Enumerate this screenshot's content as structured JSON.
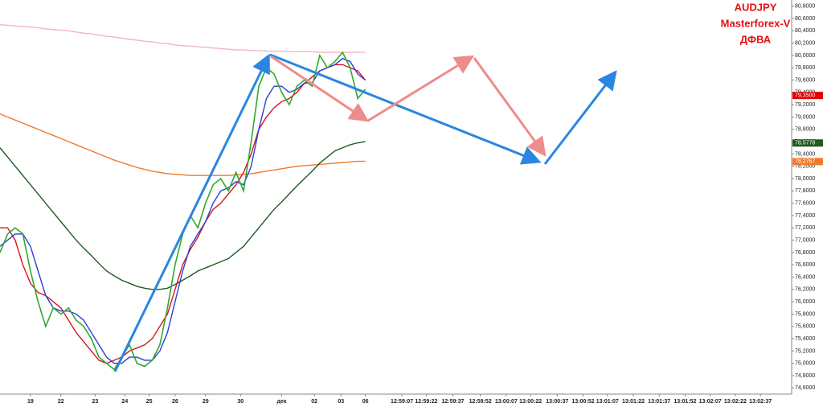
{
  "chart_data": {
    "type": "line",
    "title": [
      "AUDJPY",
      "Masterforex-V",
      "ДФВА"
    ],
    "xlim": [
      0,
      104
    ],
    "ylim": [
      74.5,
      80.9
    ],
    "x": [
      0,
      1,
      2,
      3,
      4,
      5,
      6,
      7,
      8,
      9,
      10,
      11,
      12,
      13,
      14,
      15,
      16,
      17,
      18,
      19,
      20,
      21,
      22,
      23,
      24,
      25,
      26,
      27,
      28,
      29,
      30,
      31,
      32,
      33,
      34,
      35,
      36,
      37,
      38,
      39,
      40,
      41,
      42,
      43,
      44,
      45,
      46,
      47,
      48
    ],
    "series": [
      {
        "color": "#f4b6be",
        "values": [
          80.5,
          80.49,
          80.48,
          80.47,
          80.46,
          80.45,
          80.43,
          80.42,
          80.41,
          80.4,
          80.38,
          80.36,
          80.35,
          80.33,
          80.31,
          80.3,
          80.28,
          80.26,
          80.25,
          80.23,
          80.22,
          80.2,
          80.19,
          80.17,
          80.16,
          80.15,
          80.14,
          80.13,
          80.12,
          80.11,
          80.1,
          80.09,
          80.09,
          80.08,
          80.08,
          80.07,
          80.07,
          80.07,
          80.06,
          80.06,
          80.06,
          80.06,
          80.05,
          80.05,
          80.05,
          80.05,
          80.05,
          80.05,
          80.05
        ]
      },
      {
        "color": "#ef7a2c",
        "values": [
          79.05,
          79.0,
          78.95,
          78.9,
          78.85,
          78.8,
          78.75,
          78.7,
          78.65,
          78.6,
          78.55,
          78.5,
          78.45,
          78.4,
          78.35,
          78.3,
          78.26,
          78.22,
          78.18,
          78.15,
          78.12,
          78.1,
          78.08,
          78.07,
          78.06,
          78.05,
          78.05,
          78.05,
          78.05,
          78.05,
          78.05,
          78.06,
          78.07,
          78.08,
          78.1,
          78.12,
          78.14,
          78.16,
          78.18,
          78.2,
          78.21,
          78.22,
          78.23,
          78.24,
          78.25,
          78.26,
          78.27,
          78.28,
          78.28
        ]
      },
      {
        "color": "#1f5a1f",
        "values": [
          78.5,
          78.35,
          78.2,
          78.05,
          77.9,
          77.75,
          77.6,
          77.45,
          77.3,
          77.15,
          77.0,
          76.87,
          76.75,
          76.62,
          76.5,
          76.42,
          76.35,
          76.3,
          76.25,
          76.22,
          76.2,
          76.2,
          76.22,
          76.28,
          76.35,
          76.42,
          76.5,
          76.55,
          76.6,
          76.65,
          76.7,
          76.8,
          76.9,
          77.05,
          77.2,
          77.35,
          77.5,
          77.62,
          77.75,
          77.88,
          78.0,
          78.12,
          78.25,
          78.35,
          78.45,
          78.5,
          78.55,
          78.58,
          78.6
        ]
      },
      {
        "color": "#d8141c",
        "values": [
          77.2,
          77.2,
          77.0,
          76.6,
          76.3,
          76.15,
          76.1,
          76.0,
          75.9,
          75.7,
          75.5,
          75.35,
          75.2,
          75.05,
          75.0,
          75.05,
          75.1,
          75.2,
          75.25,
          75.3,
          75.4,
          75.6,
          75.8,
          76.2,
          76.6,
          76.85,
          77.05,
          77.3,
          77.5,
          77.6,
          77.75,
          77.9,
          78.1,
          78.4,
          78.8,
          79.0,
          79.15,
          79.25,
          79.3,
          79.4,
          79.55,
          79.65,
          79.75,
          79.8,
          79.85,
          79.85,
          79.8,
          79.75,
          79.6
        ]
      },
      {
        "color": "#2b3ed8",
        "values": [
          76.9,
          77.0,
          77.1,
          77.1,
          76.9,
          76.5,
          76.1,
          75.9,
          75.85,
          75.85,
          75.8,
          75.7,
          75.5,
          75.3,
          75.1,
          75.0,
          75.0,
          75.1,
          75.1,
          75.05,
          75.05,
          75.2,
          75.5,
          76.0,
          76.5,
          76.9,
          77.1,
          77.3,
          77.6,
          77.8,
          77.85,
          77.95,
          77.9,
          78.2,
          78.8,
          79.3,
          79.5,
          79.5,
          79.4,
          79.45,
          79.55,
          79.55,
          79.75,
          79.8,
          79.85,
          79.95,
          79.9,
          79.7,
          79.6
        ]
      },
      {
        "color": "#2fa82f",
        "values": [
          76.8,
          77.1,
          77.2,
          77.1,
          76.5,
          76.0,
          75.6,
          75.9,
          75.8,
          75.9,
          75.7,
          75.6,
          75.4,
          75.1,
          75.0,
          74.9,
          75.1,
          75.3,
          75.0,
          74.95,
          75.05,
          75.3,
          75.9,
          76.6,
          77.1,
          77.4,
          77.2,
          77.6,
          77.9,
          78.0,
          77.8,
          78.1,
          77.8,
          78.6,
          79.5,
          79.8,
          79.7,
          79.4,
          79.2,
          79.5,
          79.6,
          79.5,
          80.0,
          79.8,
          79.9,
          80.05,
          79.8,
          79.3,
          79.45
        ]
      }
    ],
    "xticks": [
      {
        "value": 4,
        "label": "19"
      },
      {
        "value": 8,
        "label": "22"
      },
      {
        "value": 12.5,
        "label": "23"
      },
      {
        "value": 16.4,
        "label": "24"
      },
      {
        "value": 19.6,
        "label": "25"
      },
      {
        "value": 23,
        "label": "26"
      },
      {
        "value": 27,
        "label": "29"
      },
      {
        "value": 31.6,
        "label": "30"
      },
      {
        "value": 37,
        "label": "дек"
      },
      {
        "value": 41.3,
        "label": "02"
      },
      {
        "value": 44.8,
        "label": "03"
      },
      {
        "value": 48,
        "label": "06"
      },
      {
        "value": 52.8,
        "label": "12:59:07"
      },
      {
        "value": 56,
        "label": "12:59:22"
      },
      {
        "value": 59.5,
        "label": "12:59:37"
      },
      {
        "value": 63.1,
        "label": "12:59:52"
      },
      {
        "value": 66.5,
        "label": "13:00:07"
      },
      {
        "value": 69.7,
        "label": "13:00:22"
      },
      {
        "value": 73.2,
        "label": "13:00:37"
      },
      {
        "value": 76.6,
        "label": "13:00:52"
      },
      {
        "value": 79.8,
        "label": "13:01:07"
      },
      {
        "value": 83.2,
        "label": "13:01:22"
      },
      {
        "value": 86.6,
        "label": "13:01:37"
      },
      {
        "value": 90,
        "label": "13:01:52"
      },
      {
        "value": 93.3,
        "label": "13:02:07"
      },
      {
        "value": 96.6,
        "label": "13:02:22"
      },
      {
        "value": 99.9,
        "label": "13:02:37"
      }
    ],
    "yticks": [
      {
        "value": 74.6,
        "label": "74,6000"
      },
      {
        "value": 74.8,
        "label": "74,8000"
      },
      {
        "value": 75.0,
        "label": "75,0000"
      },
      {
        "value": 75.2,
        "label": "75,2000"
      },
      {
        "value": 75.4,
        "label": "75,4000"
      },
      {
        "value": 75.6,
        "label": "75,6000"
      },
      {
        "value": 75.8,
        "label": "75,8000"
      },
      {
        "value": 76.0,
        "label": "76,0000"
      },
      {
        "value": 76.2,
        "label": "76,2000"
      },
      {
        "value": 76.4,
        "label": "76,4000"
      },
      {
        "value": 76.6,
        "label": "76,6000"
      },
      {
        "value": 76.8,
        "label": "76,8000"
      },
      {
        "value": 77.0,
        "label": "77,0000"
      },
      {
        "value": 77.2,
        "label": "77,2000"
      },
      {
        "value": 77.4,
        "label": "77,4000"
      },
      {
        "value": 77.6,
        "label": "77,6000"
      },
      {
        "value": 77.8,
        "label": "77,8000"
      },
      {
        "value": 78.0,
        "label": "78,0000"
      },
      {
        "value": 78.2,
        "label": "78,2000"
      },
      {
        "value": 78.4,
        "label": "78,4000"
      },
      {
        "value": 78.6,
        "label": "78,6000"
      },
      {
        "value": 78.8,
        "label": "78,8000"
      },
      {
        "value": 79.0,
        "label": "79,0000"
      },
      {
        "value": 79.2,
        "label": "79,2000"
      },
      {
        "value": 79.4,
        "label": "79,4000"
      },
      {
        "value": 79.6,
        "label": "79,6000"
      },
      {
        "value": 79.8,
        "label": "79,8000"
      },
      {
        "value": 80.0,
        "label": "80,0000"
      },
      {
        "value": 80.2,
        "label": "80,2000"
      },
      {
        "value": 80.4,
        "label": "80,4000"
      },
      {
        "value": 80.6,
        "label": "80,6000"
      },
      {
        "value": 80.8,
        "label": "80,8000"
      }
    ],
    "price_markers": [
      {
        "value": 79.35,
        "label": "79,3500",
        "color": "#e00000"
      },
      {
        "value": 78.5778,
        "label": "78,5778",
        "color": "#1f5a1f"
      },
      {
        "value": 78.2767,
        "label": "78,2767",
        "color": "#ef7a2c"
      }
    ]
  }
}
